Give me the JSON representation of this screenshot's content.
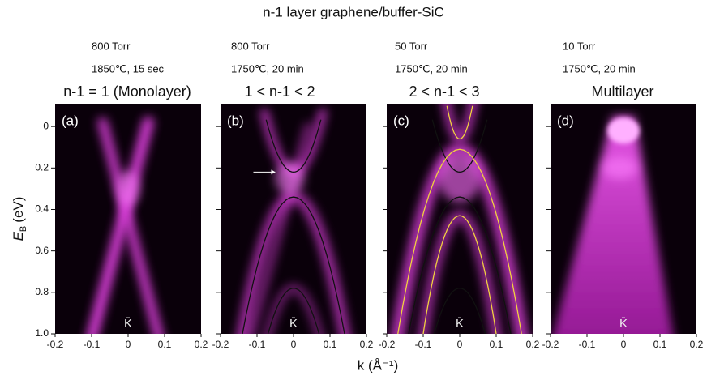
{
  "title": "n-1 layer graphene/buffer-SiC",
  "ylabel": {
    "symbol": "E",
    "subscript": "B",
    "unit": "(eV)"
  },
  "xlabel": "k (Å⁻¹)",
  "chart_data": [
    {
      "type": "arpes",
      "panel": "(a)",
      "conditions": [
        "800 Torr",
        "1850℃, 15 sec"
      ],
      "heading": "n-1 = 1 (Monolayer)",
      "point": "K̄",
      "xlim": [
        -0.2,
        0.2
      ],
      "xticks": [
        -0.2,
        -0.1,
        0,
        0.1,
        0.2
      ],
      "ylim": [
        1,
        -0.11
      ],
      "yticks": [
        0,
        0.2,
        0.4,
        0.6,
        0.8,
        {
          "value": 1,
          "label": "1.0"
        }
      ]
    },
    {
      "type": "arpes",
      "panel": "(b)",
      "conditions": [
        "800 Torr",
        "1750℃, 20 min"
      ],
      "heading": "1 < n-1 < 2",
      "point": "K̄",
      "xlim": [
        -0.2,
        0.2
      ],
      "xticks": [
        -0.2,
        -0.1,
        0,
        0.1,
        0.2
      ],
      "ylim": [
        1,
        -0.11
      ]
    },
    {
      "type": "arpes",
      "panel": "(c)",
      "conditions": [
        "50 Torr",
        "1750℃, 20 min"
      ],
      "heading": "2 < n-1 < 3",
      "point": "K̄",
      "xlim": [
        -0.2,
        0.2
      ],
      "xticks": [
        -0.2,
        -0.1,
        0,
        0.1,
        0.2
      ],
      "ylim": [
        1,
        -0.11
      ]
    },
    {
      "type": "arpes",
      "panel": "(d)",
      "conditions": [
        "10 Torr",
        "1750℃, 20 min"
      ],
      "heading": "Multilayer",
      "point": "K̄",
      "xlim": [
        -0.2,
        0.2
      ],
      "xticks": [
        -0.2,
        -0.1,
        0,
        0.1,
        0.2
      ],
      "ylim": [
        1,
        -0.11
      ]
    }
  ]
}
